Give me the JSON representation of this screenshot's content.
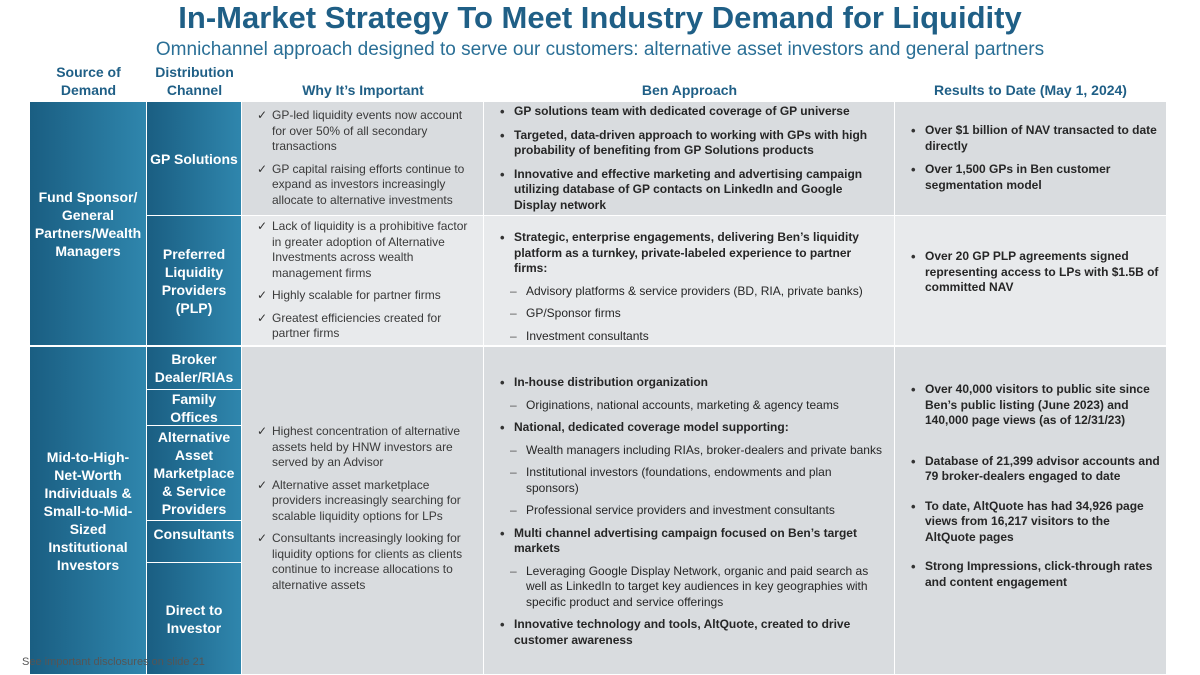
{
  "title": "In-Market Strategy To Meet Industry Demand for Liquidity",
  "subtitle": "Omnichannel approach designed to serve our customers: alternative asset investors and general partners",
  "headers": {
    "source_line1": "Source of",
    "source_line2": "Demand",
    "channel_line1": "Distribution",
    "channel_line2": "Channel",
    "why": "Why It’s Important",
    "approach": "Ben Approach",
    "results": "Results to Date (May 1, 2024)"
  },
  "sources": {
    "fund_sponsor": "Fund Sponsor/ General Partners/Wealth Managers",
    "hnw": "Mid-to-High-Net-Worth Individuals & Small-to-Mid-Sized Institutional Investors"
  },
  "channels": {
    "gp_solutions": "GP Solutions",
    "plp": "Preferred Liquidity Providers (PLP)",
    "broker": "Broker Dealer/RIAs",
    "family_offices": "Family Offices",
    "alt_marketplace": "Alternative Asset Marketplace & Service Providers",
    "consultants": "Consultants",
    "direct": "Direct to Investor"
  },
  "why": {
    "gp": [
      "GP-led liquidity events now account for over 50% of all secondary transactions",
      "GP capital raising efforts continue to expand as investors increasingly allocate to alternative investments"
    ],
    "plp": [
      "Lack of liquidity is a prohibitive factor in greater adoption of Alternative Investments across wealth management firms",
      "Highly scalable for partner firms",
      "Greatest efficiencies created for partner firms"
    ],
    "hnw": [
      "Highest concentration of alternative assets held by HNW investors are served by an Advisor",
      "Alternative asset marketplace providers increasingly searching for scalable liquidity options for LPs",
      "Consultants increasingly looking for liquidity options for clients as clients continue to increase allocations to alternative assets"
    ]
  },
  "approach": {
    "gp": [
      "GP solutions team with dedicated coverage of GP universe",
      "Targeted, data-driven approach to working with GPs with high probability of benefiting from GP Solutions products",
      "Innovative and effective marketing and advertising campaign utilizing database of GP contacts on LinkedIn and Google Display network"
    ],
    "plp_main": "Strategic, enterprise engagements, delivering Ben’s liquidity platform as a turnkey, private-labeled experience to partner firms:",
    "plp_subs": [
      "Advisory platforms & service providers (BD, RIA, private banks)",
      "GP/Sponsor firms",
      "Investment consultants"
    ],
    "hnw_1": "In-house distribution organization",
    "hnw_1_sub": "Originations, national accounts, marketing & agency teams",
    "hnw_2": "National, dedicated coverage model supporting:",
    "hnw_2_subs": [
      "Wealth managers including RIAs, broker-dealers and private banks",
      "Institutional investors (foundations, endowments and plan sponsors)",
      "Professional service providers and investment consultants"
    ],
    "hnw_3": "Multi channel advertising campaign focused on Ben’s target markets",
    "hnw_3_sub": "Leveraging Google Display Network, organic and paid search as well as LinkedIn to target key audiences in key geographies with specific product and service offerings",
    "hnw_4": "Innovative technology and tools, AltQuote, created to drive customer awareness"
  },
  "results": {
    "gp": [
      "Over $1 billion of NAV transacted to date directly",
      "Over 1,500 GPs in Ben customer segmentation model"
    ],
    "plp": [
      "Over 20 GP PLP agreements signed representing access to LPs with $1.5B of committed NAV"
    ],
    "hnw": [
      "Over 40,000 visitors to public site since Ben’s public listing (June 2023) and 140,000 page views (as of 12/31/23)",
      "Database of 21,399 advisor accounts and 79 broker-dealers engaged to date",
      "To date, AltQuote has had 34,926 page views from 16,217 visitors to the AltQuote pages",
      "Strong Impressions, click-through rates and content engagement"
    ]
  },
  "footer": "See important disclosures on slide 21",
  "colors": {
    "title": "#1f5f86",
    "teal_dark": "#1a5e82",
    "teal_light": "#2f86ad",
    "grey": "#d9dcdf"
  }
}
